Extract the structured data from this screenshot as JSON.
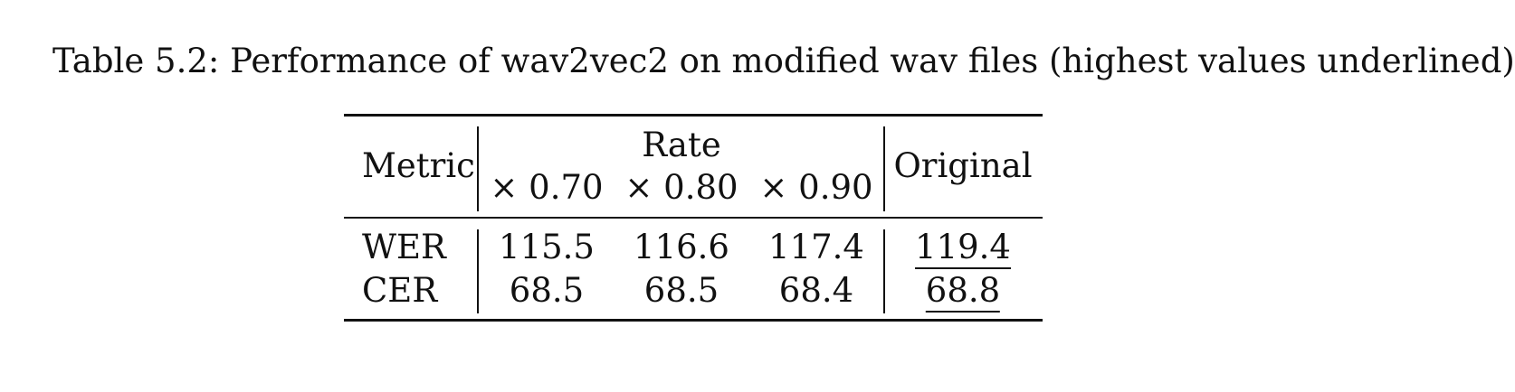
{
  "caption": "Table 5.2: Performance of wav2vec2 on modified wav files (highest values underlined)",
  "table": {
    "header": {
      "metric": "Metric",
      "group": "Rate",
      "rates": [
        "× 0.70",
        "× 0.80",
        "× 0.90"
      ],
      "original": "Original"
    },
    "rows": [
      {
        "metric": "WER",
        "values": [
          "115.5",
          "116.6",
          "117.4"
        ],
        "original": "119.4"
      },
      {
        "metric": "CER",
        "values": [
          "68.5",
          "68.5",
          "68.4"
        ],
        "original": "68.8"
      }
    ],
    "underlined": [
      "119.4",
      "68.8"
    ]
  }
}
